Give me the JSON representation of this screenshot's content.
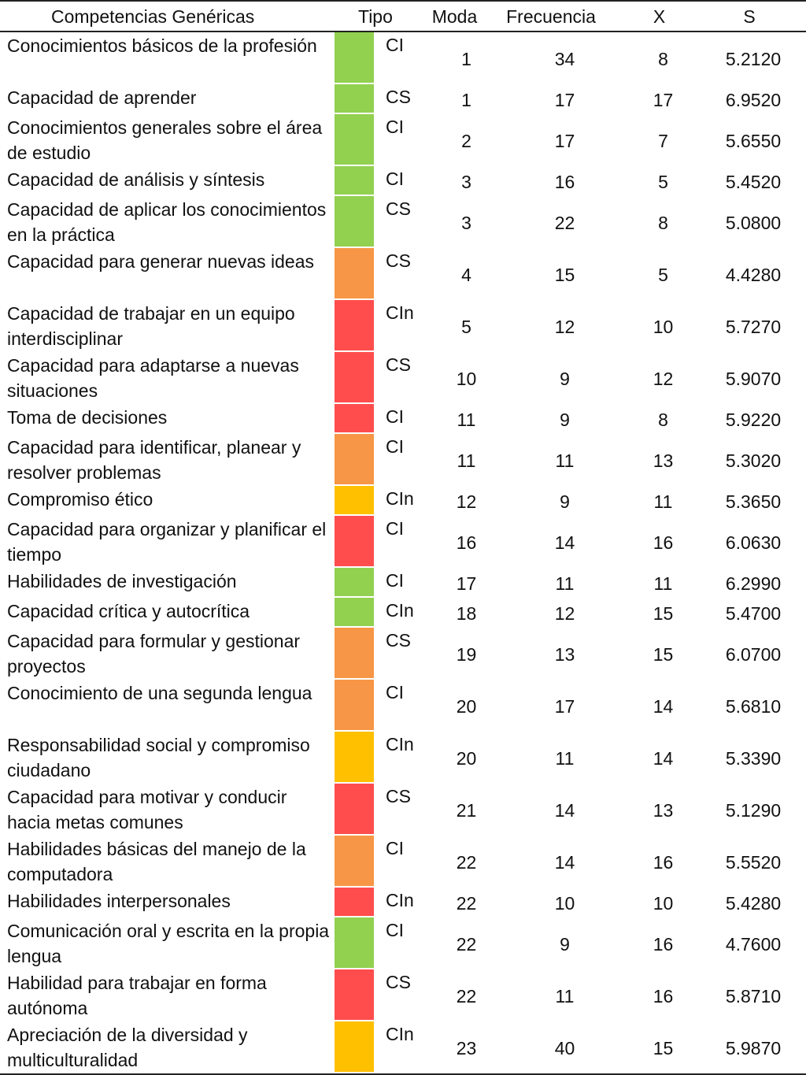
{
  "headers": {
    "competencia": "Competencias Genéricas",
    "tipo": "Tipo",
    "moda": "Moda",
    "frecuencia": "Frecuencia",
    "x": "X",
    "s": "S"
  },
  "colors": {
    "green": "#92d050",
    "orange": "#f79646",
    "red": "#ff4d4d",
    "yellow": "#ffc000"
  },
  "rows": [
    {
      "name": "Conocimientos básicos de la profesión",
      "lines": 2,
      "color": "green",
      "tipo": "CI",
      "moda": "1",
      "frecuencia": "34",
      "x": "8",
      "s": "5.2120"
    },
    {
      "name": "Capacidad de aprender",
      "lines": 1,
      "color": "green",
      "tipo": "CS",
      "moda": "1",
      "frecuencia": "17",
      "x": "17",
      "s": "6.9520"
    },
    {
      "name": "Conocimientos generales sobre el área de estudio",
      "lines": 2,
      "color": "green",
      "tipo": "CI",
      "moda": "2",
      "frecuencia": "17",
      "x": "7",
      "s": "5.6550"
    },
    {
      "name": "Capacidad de análisis y síntesis",
      "lines": 1,
      "color": "green",
      "tipo": "CI",
      "moda": "3",
      "frecuencia": "16",
      "x": "5",
      "s": "5.4520"
    },
    {
      "name": "Capacidad de aplicar los conocimientos en la práctica",
      "lines": 2,
      "color": "green",
      "tipo": "CS",
      "moda": "3",
      "frecuencia": "22",
      "x": "8",
      "s": "5.0800"
    },
    {
      "name": "Capacidad para generar nuevas ideas",
      "lines": 2,
      "color": "orange",
      "tipo": "CS",
      "moda": "4",
      "frecuencia": "15",
      "x": "5",
      "s": "4.4280"
    },
    {
      "name": "Capacidad de trabajar en un equipo interdisciplinar",
      "lines": 2,
      "color": "red",
      "tipo": "CIn",
      "moda": "5",
      "frecuencia": "12",
      "x": "10",
      "s": "5.7270"
    },
    {
      "name": "Capacidad para adaptarse a nuevas situaciones",
      "lines": 2,
      "color": "red",
      "tipo": "CS",
      "moda": "10",
      "frecuencia": "9",
      "x": "12",
      "s": "5.9070"
    },
    {
      "name": "Toma de decisiones",
      "lines": 1,
      "color": "red",
      "tipo": "CI",
      "moda": "11",
      "frecuencia": "9",
      "x": "8",
      "s": "5.9220"
    },
    {
      "name": "Capacidad para identificar, planear y resolver problemas",
      "lines": 2,
      "color": "orange",
      "tipo": "CI",
      "moda": "11",
      "frecuencia": "11",
      "x": "13",
      "s": "5.3020"
    },
    {
      "name": "Compromiso ético",
      "lines": 1,
      "color": "yellow",
      "tipo": "CIn",
      "moda": "12",
      "frecuencia": "9",
      "x": "11",
      "s": "5.3650"
    },
    {
      "name": "Capacidad para organizar y planificar el tiempo",
      "lines": 2,
      "color": "red",
      "tipo": "CI",
      "moda": "16",
      "frecuencia": "14",
      "x": "16",
      "s": "6.0630"
    },
    {
      "name": "Habilidades de investigación",
      "lines": 1,
      "color": "green",
      "tipo": "CI",
      "moda": "17",
      "frecuencia": "11",
      "x": "11",
      "s": "6.2990"
    },
    {
      "name": "Capacidad crítica y autocrítica",
      "lines": 1,
      "color": "green",
      "tipo": "CIn",
      "moda": "18",
      "frecuencia": "12",
      "x": "15",
      "s": "5.4700"
    },
    {
      "name": "Capacidad para formular y gestionar proyectos",
      "lines": 2,
      "color": "orange",
      "tipo": "CS",
      "moda": "19",
      "frecuencia": "13",
      "x": "15",
      "s": "6.0700"
    },
    {
      "name": "Conocimiento de una segunda lengua",
      "lines": 2,
      "color": "orange",
      "tipo": "CI",
      "moda": "20",
      "frecuencia": "17",
      "x": "14",
      "s": "5.6810"
    },
    {
      "name": "Responsabilidad social y compromiso ciudadano",
      "lines": 2,
      "color": "yellow",
      "tipo": "CIn",
      "moda": "20",
      "frecuencia": "11",
      "x": "14",
      "s": "5.3390"
    },
    {
      "name": "Capacidad para motivar y conducir hacia metas comunes",
      "lines": 2,
      "color": "red",
      "tipo": "CS",
      "moda": "21",
      "frecuencia": "14",
      "x": "13",
      "s": "5.1290"
    },
    {
      "name": "Habilidades básicas del manejo de la computadora",
      "lines": 2,
      "color": "orange",
      "tipo": "CI",
      "moda": "22",
      "frecuencia": "14",
      "x": "16",
      "s": "5.5520"
    },
    {
      "name": "Habilidades interpersonales",
      "lines": 1,
      "color": "red",
      "tipo": "CIn",
      "moda": "22",
      "frecuencia": "10",
      "x": "10",
      "s": "5.4280"
    },
    {
      "name": "Comunicación oral y escrita en la propia lengua",
      "lines": 2,
      "color": "green",
      "tipo": "CI",
      "moda": "22",
      "frecuencia": "9",
      "x": "16",
      "s": "4.7600"
    },
    {
      "name": "Habilidad para trabajar en forma autónoma",
      "lines": 2,
      "color": "red",
      "tipo": "CS",
      "moda": "22",
      "frecuencia": "11",
      "x": "16",
      "s": "5.8710"
    },
    {
      "name": "Apreciación de la diversidad y multiculturalidad",
      "lines": 2,
      "color": "yellow",
      "tipo": "CIn",
      "moda": "23",
      "frecuencia": "40",
      "x": "15",
      "s": "5.9870"
    }
  ]
}
